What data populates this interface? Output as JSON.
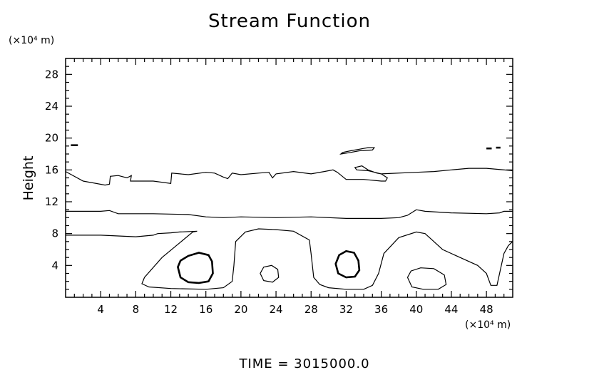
{
  "chart_data": {
    "type": "contour",
    "title": "Stream Function",
    "ylabel": "Height",
    "xlabel": "",
    "x_unit": "(×10⁴ m)",
    "y_unit": "(×10⁴ m)",
    "xlim": [
      0,
      51
    ],
    "ylim": [
      0,
      30
    ],
    "x_ticks": [
      4,
      8,
      12,
      16,
      20,
      24,
      28,
      32,
      36,
      40,
      44,
      48
    ],
    "y_ticks": [
      4,
      8,
      12,
      16,
      20,
      24,
      28
    ],
    "x_minor_step": 1,
    "y_minor_step": 1,
    "grid": false,
    "footer": "TIME  =  3015000.0",
    "contours": [
      {
        "id": "upper-contour-16",
        "bold": false,
        "closed": false,
        "points": [
          [
            0,
            15.8
          ],
          [
            2,
            14.6
          ],
          [
            4.5,
            14.1
          ],
          [
            5,
            14.2
          ],
          [
            5.1,
            15.2
          ],
          [
            6,
            15.3
          ],
          [
            7,
            15.0
          ],
          [
            7.5,
            15.3
          ],
          [
            7.4,
            14.6
          ],
          [
            10,
            14.6
          ],
          [
            12,
            14.3
          ],
          [
            12.1,
            15.6
          ],
          [
            14,
            15.4
          ],
          [
            16,
            15.7
          ],
          [
            17,
            15.6
          ],
          [
            18,
            15.1
          ],
          [
            18.5,
            14.9
          ],
          [
            19,
            15.6
          ],
          [
            20,
            15.4
          ],
          [
            22,
            15.6
          ],
          [
            23.2,
            15.7
          ],
          [
            23.6,
            15.0
          ],
          [
            24,
            15.5
          ],
          [
            26,
            15.8
          ],
          [
            28,
            15.5
          ],
          [
            29.5,
            15.8
          ],
          [
            30.5,
            16.0
          ],
          [
            31,
            15.7
          ],
          [
            32,
            14.8
          ],
          [
            34,
            14.8
          ],
          [
            36,
            14.6
          ],
          [
            36.5,
            14.6
          ],
          [
            36.7,
            15.0
          ],
          [
            36,
            15.5
          ],
          [
            34.5,
            15.9
          ],
          [
            33.2,
            16.0
          ],
          [
            33,
            16.3
          ],
          [
            33.8,
            16.5
          ],
          [
            34.5,
            16.0
          ],
          [
            35.5,
            15.6
          ],
          [
            36,
            15.5
          ],
          [
            40,
            15.7
          ],
          [
            42,
            15.8
          ],
          [
            44,
            16.0
          ],
          [
            46,
            16.2
          ],
          [
            48,
            16.2
          ],
          [
            51,
            15.9
          ]
        ]
      },
      {
        "id": "small-contour-19",
        "bold": false,
        "closed": true,
        "points": [
          [
            31.4,
            18.0
          ],
          [
            32.5,
            18.2
          ],
          [
            33.5,
            18.4
          ],
          [
            35,
            18.5
          ],
          [
            35.2,
            18.8
          ],
          [
            34.5,
            18.8
          ],
          [
            33.5,
            18.6
          ],
          [
            32.5,
            18.4
          ],
          [
            31.6,
            18.2
          ]
        ]
      },
      {
        "id": "middle-contour-10",
        "bold": false,
        "closed": false,
        "points": [
          [
            0,
            10.8
          ],
          [
            4,
            10.8
          ],
          [
            5,
            10.9
          ],
          [
            6,
            10.5
          ],
          [
            10,
            10.5
          ],
          [
            14,
            10.4
          ],
          [
            16,
            10.1
          ],
          [
            18,
            10.0
          ],
          [
            20,
            10.1
          ],
          [
            24,
            10.0
          ],
          [
            28,
            10.1
          ],
          [
            32,
            9.9
          ],
          [
            36,
            9.9
          ],
          [
            38,
            10.0
          ],
          [
            39,
            10.3
          ],
          [
            40,
            11.0
          ],
          [
            41,
            10.8
          ],
          [
            44,
            10.6
          ],
          [
            48,
            10.5
          ],
          [
            49.5,
            10.6
          ],
          [
            50,
            10.8
          ],
          [
            51,
            10.8
          ]
        ]
      },
      {
        "id": "lower-contour-8",
        "bold": false,
        "closed": false,
        "points": [
          [
            0,
            7.8
          ],
          [
            4,
            7.8
          ],
          [
            8,
            7.6
          ],
          [
            10,
            7.8
          ],
          [
            10.5,
            8.0
          ],
          [
            12,
            8.1
          ],
          [
            13,
            8.2
          ],
          [
            15,
            8.3
          ],
          [
            14.5,
            8.2
          ],
          [
            11,
            5.0
          ],
          [
            9,
            2.5
          ],
          [
            8.7,
            1.7
          ],
          [
            9.5,
            1.3
          ],
          [
            12,
            1.1
          ],
          [
            16,
            1.0
          ],
          [
            18,
            1.2
          ],
          [
            19,
            2.0
          ],
          [
            19.2,
            4.0
          ],
          [
            19.4,
            7.0
          ],
          [
            20.5,
            8.2
          ],
          [
            22,
            8.6
          ],
          [
            24,
            8.5
          ],
          [
            26,
            8.3
          ],
          [
            27.8,
            7.2
          ],
          [
            28,
            5.5
          ],
          [
            28.3,
            2.5
          ],
          [
            29,
            1.6
          ],
          [
            30,
            1.2
          ],
          [
            32,
            1.0
          ],
          [
            34,
            1.0
          ],
          [
            35,
            1.5
          ],
          [
            35.7,
            3.0
          ],
          [
            36.3,
            5.5
          ],
          [
            38,
            7.5
          ],
          [
            40,
            8.2
          ],
          [
            41,
            8.0
          ],
          [
            42,
            7.0
          ],
          [
            43,
            6.0
          ],
          [
            45,
            5.0
          ],
          [
            47,
            4.0
          ],
          [
            48,
            3.0
          ],
          [
            48.5,
            1.5
          ],
          [
            49.2,
            1.5
          ],
          [
            49.6,
            3.5
          ],
          [
            50,
            5.5
          ],
          [
            50.5,
            6.5
          ],
          [
            51,
            7.0
          ]
        ]
      },
      {
        "id": "vortex-15",
        "bold": true,
        "closed": true,
        "points": [
          [
            12.8,
            3.8
          ],
          [
            13.1,
            2.5
          ],
          [
            14,
            1.9
          ],
          [
            15.2,
            1.8
          ],
          [
            16.3,
            2.0
          ],
          [
            16.8,
            3.0
          ],
          [
            16.7,
            4.5
          ],
          [
            16.3,
            5.3
          ],
          [
            15.2,
            5.6
          ],
          [
            14,
            5.2
          ],
          [
            13.1,
            4.6
          ]
        ]
      },
      {
        "id": "vortex-32",
        "bold": true,
        "closed": true,
        "points": [
          [
            30.8,
            4.2
          ],
          [
            31.1,
            3.0
          ],
          [
            32,
            2.5
          ],
          [
            33,
            2.6
          ],
          [
            33.5,
            3.4
          ],
          [
            33.4,
            4.6
          ],
          [
            32.9,
            5.6
          ],
          [
            32,
            5.8
          ],
          [
            31.2,
            5.3
          ]
        ]
      },
      {
        "id": "small-cell-23",
        "bold": false,
        "closed": true,
        "points": [
          [
            22.2,
            3.0
          ],
          [
            22.6,
            2.1
          ],
          [
            23.6,
            1.9
          ],
          [
            24.3,
            2.5
          ],
          [
            24.2,
            3.5
          ],
          [
            23.5,
            4.0
          ],
          [
            22.6,
            3.8
          ]
        ]
      },
      {
        "id": "cell-41",
        "bold": false,
        "closed": true,
        "points": [
          [
            39,
            2.5
          ],
          [
            39.5,
            1.3
          ],
          [
            40.8,
            1.0
          ],
          [
            42.5,
            1.0
          ],
          [
            43.4,
            1.6
          ],
          [
            43.2,
            2.8
          ],
          [
            42,
            3.6
          ],
          [
            40.5,
            3.7
          ],
          [
            39.4,
            3.3
          ]
        ]
      },
      {
        "id": "dash-left",
        "bold": true,
        "closed": false,
        "points": [
          [
            0.6,
            19.1
          ],
          [
            1.4,
            19.1
          ]
        ]
      },
      {
        "id": "dash-right-a",
        "bold": true,
        "closed": false,
        "points": [
          [
            48,
            18.7
          ],
          [
            48.6,
            18.7
          ]
        ]
      },
      {
        "id": "dash-right-b",
        "bold": true,
        "closed": false,
        "points": [
          [
            49.1,
            18.8
          ],
          [
            49.6,
            18.8
          ]
        ]
      }
    ]
  }
}
